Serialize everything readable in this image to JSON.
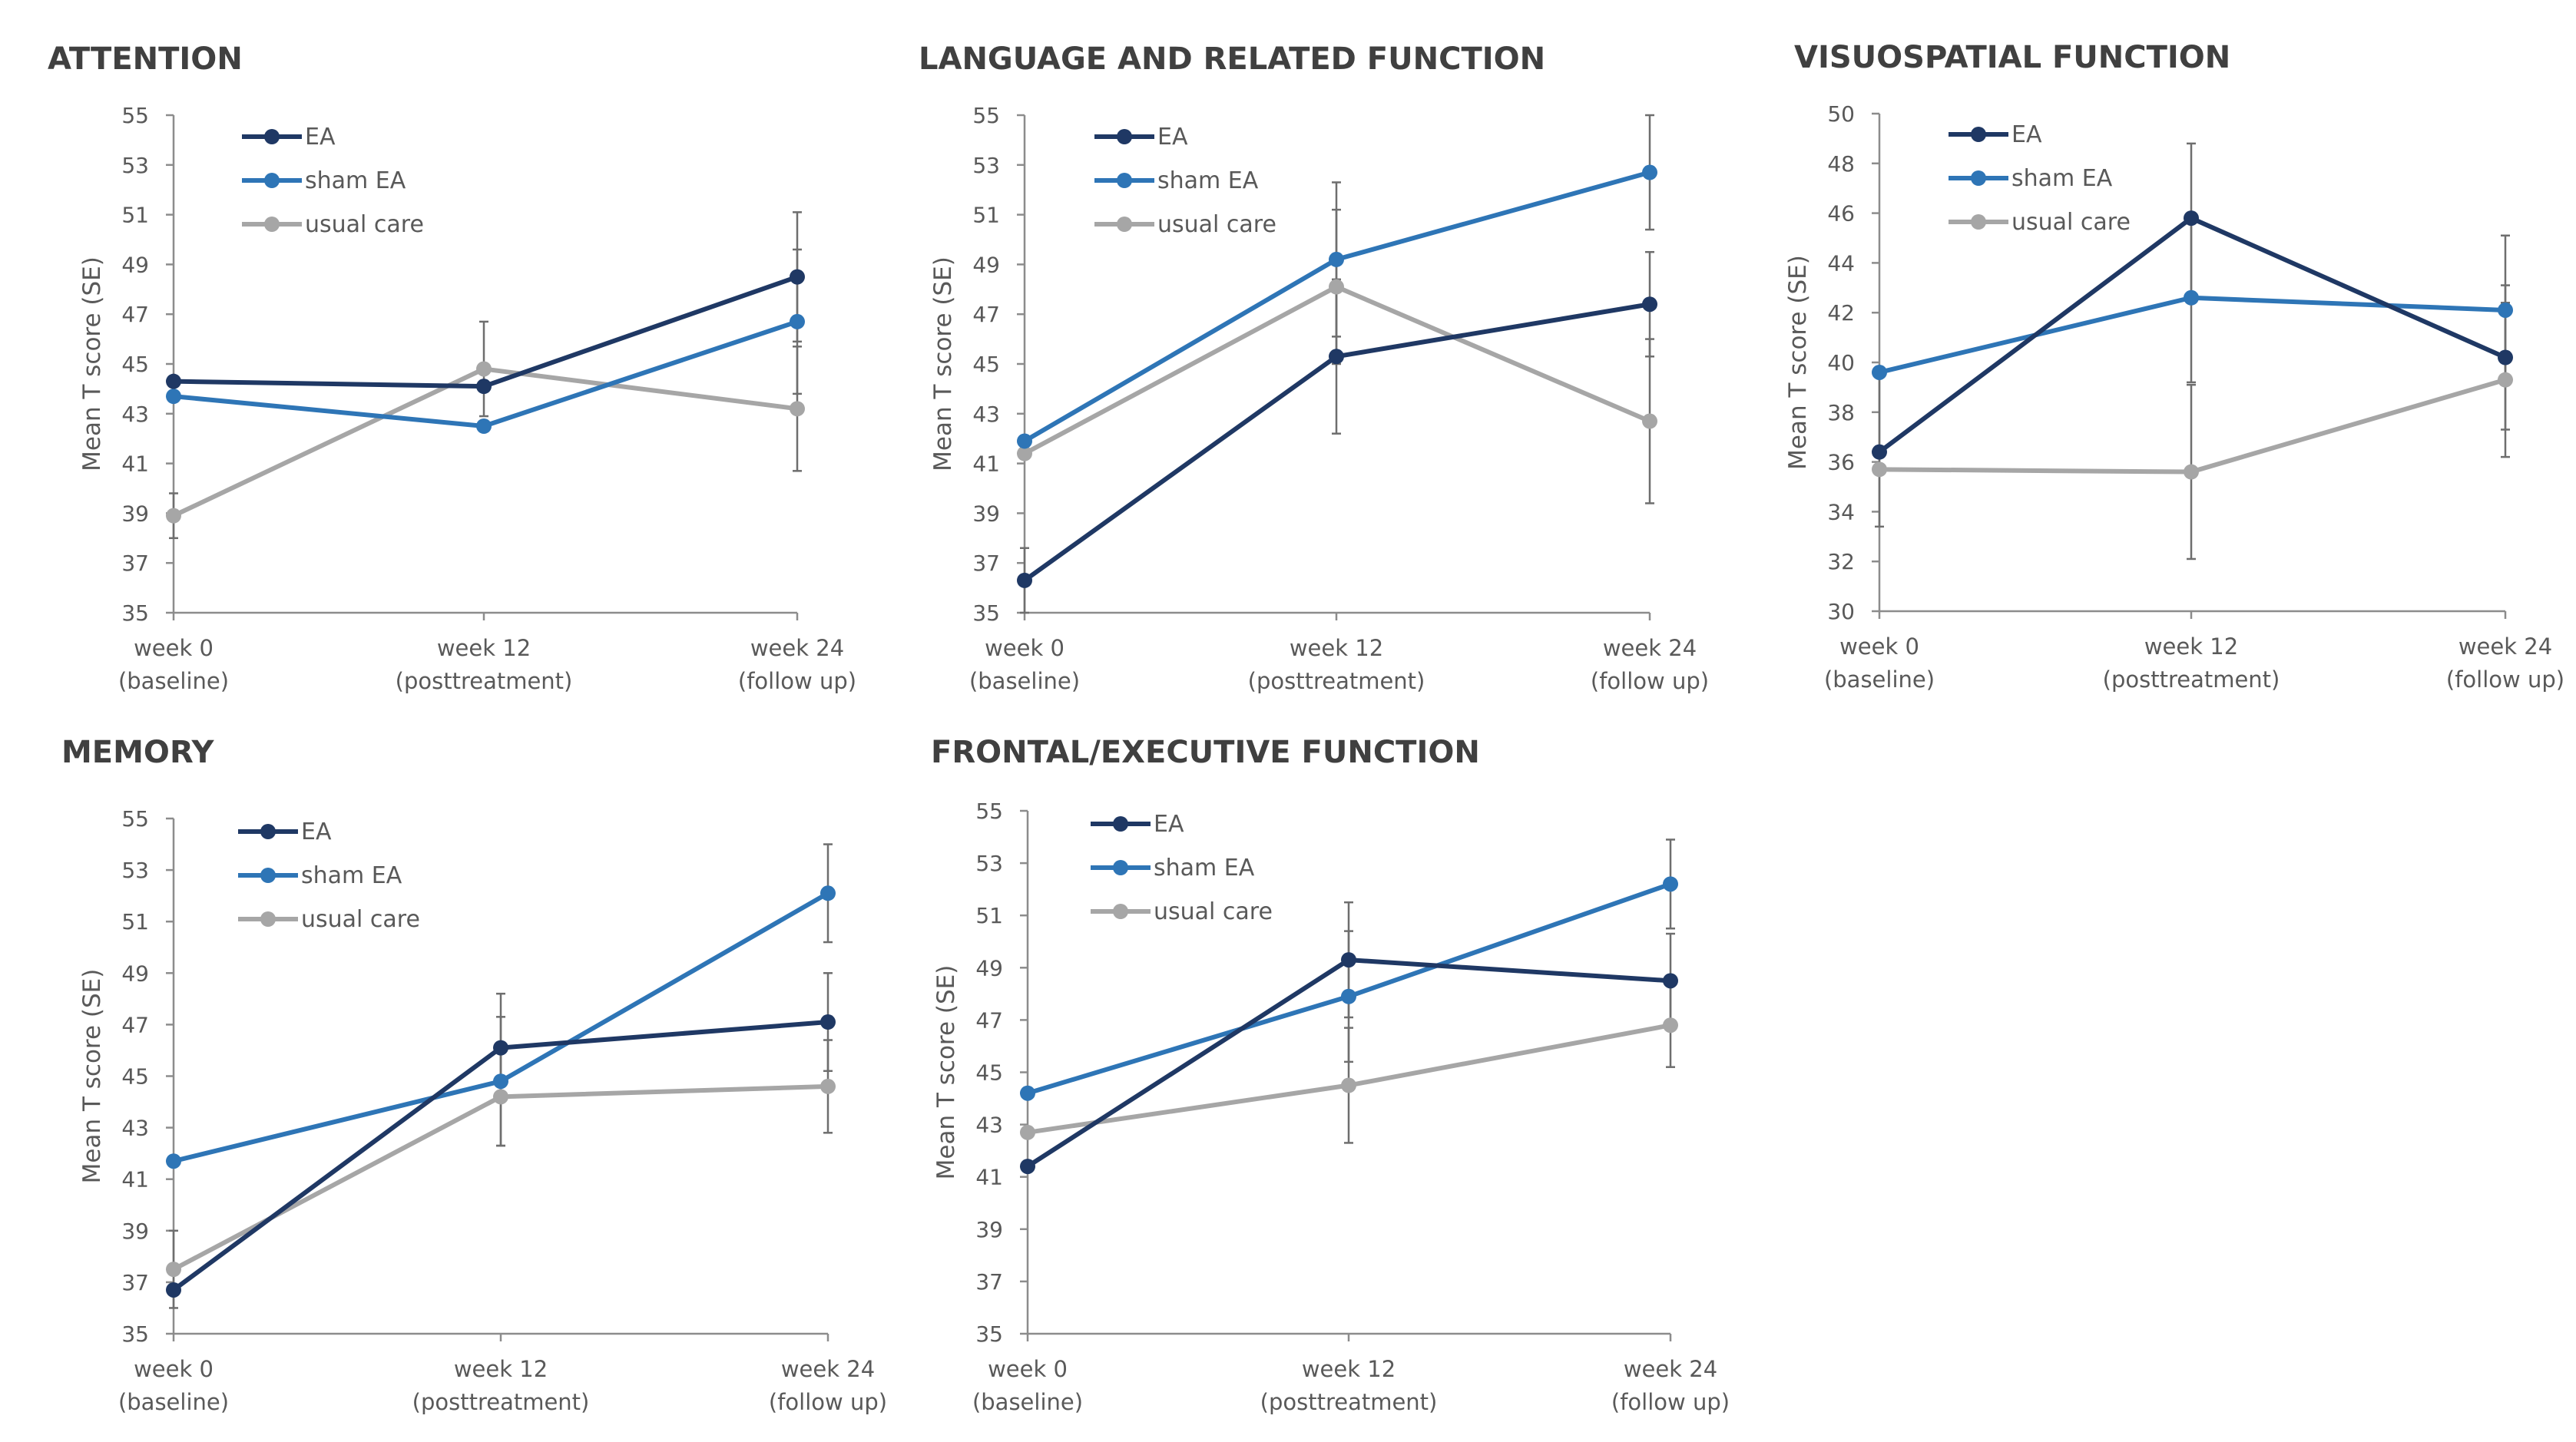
{
  "chart_data": [
    {
      "type": "line",
      "title": "ATTENTION",
      "ylabel": "Mean T score (SE)",
      "ylim": [
        35,
        55
      ],
      "yticks": [
        35,
        37,
        39,
        41,
        43,
        45,
        47,
        49,
        51,
        53,
        55
      ],
      "categories": [
        [
          "week 0",
          "(baseline)"
        ],
        [
          "week 12",
          "(posttreatment)"
        ],
        [
          "week 24",
          "(follow up)"
        ]
      ],
      "legend": "top-left",
      "series": [
        {
          "name": "EA",
          "color": "#1f3864",
          "values": [
            44.3,
            44.1,
            48.5
          ],
          "se": [
            0,
            0,
            2.6
          ]
        },
        {
          "name": "sham EA",
          "color": "#2e75b6",
          "values": [
            43.7,
            42.5,
            46.7
          ],
          "se": [
            0,
            0,
            2.9
          ]
        },
        {
          "name": "usual care",
          "color": "#a6a6a6",
          "values": [
            38.9,
            44.8,
            43.2
          ],
          "se": [
            0.9,
            1.9,
            2.5
          ]
        }
      ]
    },
    {
      "type": "line",
      "title": "LANGUAGE AND RELATED FUNCTION",
      "ylabel": "Mean T score (SE)",
      "ylim": [
        35,
        55
      ],
      "yticks": [
        35,
        37,
        39,
        41,
        43,
        45,
        47,
        49,
        51,
        53,
        55
      ],
      "categories": [
        [
          "week 0",
          "(baseline)"
        ],
        [
          "week 12",
          "(posttreatment)"
        ],
        [
          "week 24",
          "(follow up)"
        ]
      ],
      "legend": "top-left",
      "series": [
        {
          "name": "EA",
          "color": "#1f3864",
          "values": [
            36.3,
            45.3,
            47.4
          ],
          "se": [
            1.3,
            3.1,
            2.1
          ]
        },
        {
          "name": "sham EA",
          "color": "#2e75b6",
          "values": [
            41.9,
            49.2,
            52.7
          ],
          "se": [
            0,
            3.1,
            2.3
          ]
        },
        {
          "name": "usual care",
          "color": "#a6a6a6",
          "values": [
            41.4,
            48.1,
            42.7
          ],
          "se": [
            0,
            3.1,
            3.3
          ]
        }
      ]
    },
    {
      "type": "line",
      "title": "VISUOSPATIAL FUNCTION",
      "ylabel": "Mean T score (SE)",
      "ylim": [
        30,
        50
      ],
      "yticks": [
        30,
        32,
        34,
        36,
        38,
        40,
        42,
        44,
        46,
        48,
        50
      ],
      "categories": [
        [
          "week 0",
          "(baseline)"
        ],
        [
          "week 12",
          "(posttreatment)"
        ],
        [
          "week 24",
          "(follow up)"
        ]
      ],
      "legend": "top-left",
      "series": [
        {
          "name": "EA",
          "color": "#1f3864",
          "values": [
            36.4,
            45.8,
            40.2
          ],
          "se": [
            3.0,
            3.0,
            2.9
          ]
        },
        {
          "name": "sham EA",
          "color": "#2e75b6",
          "values": [
            39.6,
            42.6,
            42.1
          ],
          "se": [
            0,
            3.4,
            3.0
          ]
        },
        {
          "name": "usual care",
          "color": "#a6a6a6",
          "values": [
            35.7,
            35.6,
            39.3
          ],
          "se": [
            0,
            3.5,
            3.1
          ]
        }
      ]
    },
    {
      "type": "line",
      "title": "MEMORY",
      "ylabel": "Mean T score (SE)",
      "ylim": [
        35,
        55
      ],
      "yticks": [
        35,
        37,
        39,
        41,
        43,
        45,
        47,
        49,
        51,
        53,
        55
      ],
      "categories": [
        [
          "week 0",
          "(baseline)"
        ],
        [
          "week 12",
          "(posttreatment)"
        ],
        [
          "week 24",
          "(follow up)"
        ]
      ],
      "legend": "top-left",
      "series": [
        {
          "name": "EA",
          "color": "#1f3864",
          "values": [
            36.7,
            46.1,
            47.1
          ],
          "se": [
            0,
            2.1,
            1.9
          ]
        },
        {
          "name": "sham EA",
          "color": "#2e75b6",
          "values": [
            41.7,
            44.8,
            52.1
          ],
          "se": [
            0,
            2.5,
            1.9
          ]
        },
        {
          "name": "usual care",
          "color": "#a6a6a6",
          "values": [
            37.5,
            44.2,
            44.6
          ],
          "se": [
            1.5,
            1.9,
            1.8
          ]
        }
      ]
    },
    {
      "type": "line",
      "title": "FRONTAL/EXECUTIVE FUNCTION",
      "ylabel": "Mean T score (SE)",
      "ylim": [
        35,
        55
      ],
      "yticks": [
        35,
        37,
        39,
        41,
        43,
        45,
        47,
        49,
        51,
        53,
        55
      ],
      "categories": [
        [
          "week 0",
          "(baseline)"
        ],
        [
          "week 12",
          "(posttreatment)"
        ],
        [
          "week 24",
          "(follow up)"
        ]
      ],
      "legend": "top-left",
      "series": [
        {
          "name": "EA",
          "color": "#1f3864",
          "values": [
            41.4,
            49.3,
            48.5
          ],
          "se": [
            0,
            2.2,
            1.8
          ]
        },
        {
          "name": "sham EA",
          "color": "#2e75b6",
          "values": [
            44.2,
            47.9,
            52.2
          ],
          "se": [
            0,
            2.5,
            1.7
          ]
        },
        {
          "name": "usual care",
          "color": "#a6a6a6",
          "values": [
            42.7,
            44.5,
            46.8
          ],
          "se": [
            0,
            2.2,
            1.6
          ]
        }
      ]
    }
  ]
}
